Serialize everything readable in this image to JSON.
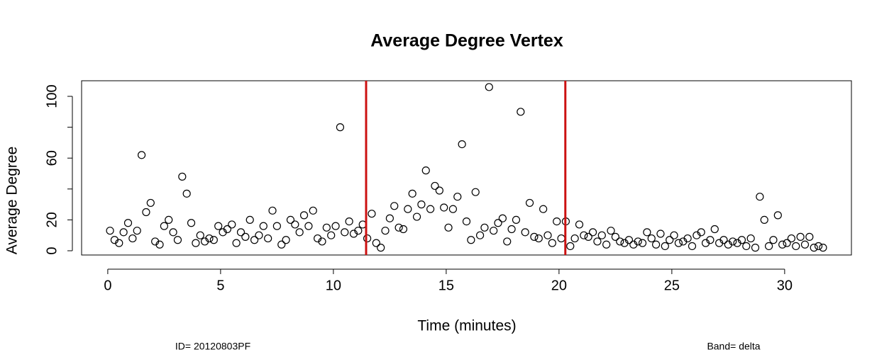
{
  "chart_data": {
    "type": "scatter",
    "title": "Average Degree Vertex",
    "x_label": "Time (minutes)",
    "y_label": "Average Degree",
    "footer_left": "ID= 20120803PF",
    "footer_right": "Band= delta",
    "marker": "open-circle",
    "color": "#000000",
    "xlim": [
      -1.16,
      32.96
    ],
    "ylim": [
      -2.75,
      110.1
    ],
    "xticks": [
      0,
      5,
      10,
      15,
      20,
      25,
      30
    ],
    "yticks": [
      0,
      20,
      {
        "value": 40,
        "label": null
      },
      60,
      {
        "value": 80,
        "label": null
      },
      100
    ],
    "grid": false,
    "vlines": [
      {
        "x": 11.45,
        "color": "#cc1111"
      },
      {
        "x": 20.28,
        "color": "#cc1111"
      }
    ],
    "x": [
      0.1,
      0.3,
      0.5,
      0.7,
      0.9,
      1.1,
      1.3,
      1.5,
      1.7,
      1.9,
      2.1,
      2.3,
      2.5,
      2.7,
      2.9,
      3.1,
      3.3,
      3.5,
      3.7,
      3.9,
      4.1,
      4.3,
      4.5,
      4.7,
      4.9,
      5.1,
      5.3,
      5.5,
      5.7,
      5.9,
      6.1,
      6.3,
      6.5,
      6.7,
      6.9,
      7.1,
      7.3,
      7.5,
      7.7,
      7.9,
      8.1,
      8.3,
      8.5,
      8.7,
      8.9,
      9.1,
      9.3,
      9.5,
      9.7,
      9.9,
      10.1,
      10.3,
      10.5,
      10.7,
      10.9,
      11.1,
      11.3,
      11.5,
      11.7,
      11.9,
      12.1,
      12.3,
      12.5,
      12.7,
      12.9,
      13.1,
      13.3,
      13.5,
      13.7,
      13.9,
      14.1,
      14.3,
      14.5,
      14.7,
      14.9,
      15.1,
      15.3,
      15.5,
      15.7,
      15.9,
      16.1,
      16.3,
      16.5,
      16.7,
      16.9,
      17.1,
      17.3,
      17.5,
      17.7,
      17.9,
      18.1,
      18.3,
      18.5,
      18.7,
      18.9,
      19.1,
      19.3,
      19.5,
      19.7,
      19.9,
      20.1,
      20.3,
      20.5,
      20.7,
      20.9,
      21.1,
      21.3,
      21.5,
      21.7,
      21.9,
      22.1,
      22.3,
      22.5,
      22.7,
      22.9,
      23.1,
      23.3,
      23.5,
      23.7,
      23.9,
      24.1,
      24.3,
      24.5,
      24.7,
      24.9,
      25.1,
      25.3,
      25.5,
      25.7,
      25.9,
      26.1,
      26.3,
      26.5,
      26.7,
      26.9,
      27.1,
      27.3,
      27.5,
      27.7,
      27.9,
      28.1,
      28.3,
      28.5,
      28.7,
      28.9,
      29.1,
      29.3,
      29.5,
      29.7,
      29.9,
      30.1,
      30.3,
      30.5,
      30.7,
      30.9,
      31.1,
      31.3,
      31.5,
      31.7
    ],
    "values": [
      13,
      7,
      5,
      12,
      18,
      8,
      13,
      62,
      25,
      31,
      6,
      4,
      16,
      20,
      12,
      7,
      48,
      37,
      18,
      5,
      10,
      6,
      8,
      7,
      16,
      12,
      14,
      17,
      5,
      12,
      9,
      20,
      7,
      10,
      16,
      8,
      26,
      16,
      4,
      7,
      20,
      17,
      12,
      23,
      16,
      26,
      8,
      6,
      15,
      10,
      16,
      80,
      12,
      19,
      11,
      13,
      17,
      8,
      24,
      5,
      2,
      13,
      21,
      29,
      15,
      14,
      27,
      37,
      22,
      30,
      52,
      27,
      42,
      39,
      28,
      15,
      27,
      35,
      69,
      19,
      7,
      38,
      10,
      15,
      106,
      13,
      18,
      21,
      6,
      14,
      20,
      90,
      12,
      31,
      9,
      8,
      27,
      10,
      5,
      19,
      8,
      19,
      3,
      8,
      17,
      10,
      9,
      12,
      6,
      10,
      4,
      13,
      9,
      6,
      5,
      7,
      4,
      6,
      5,
      12,
      8,
      4,
      11,
      3,
      7,
      10,
      5,
      6,
      8,
      3,
      10,
      12,
      5,
      7,
      14,
      5,
      7,
      4,
      6,
      5,
      7,
      3,
      8,
      2,
      35,
      20,
      3,
      7,
      23,
      4,
      5,
      8,
      3,
      9,
      4,
      9,
      2,
      3,
      2
    ]
  }
}
